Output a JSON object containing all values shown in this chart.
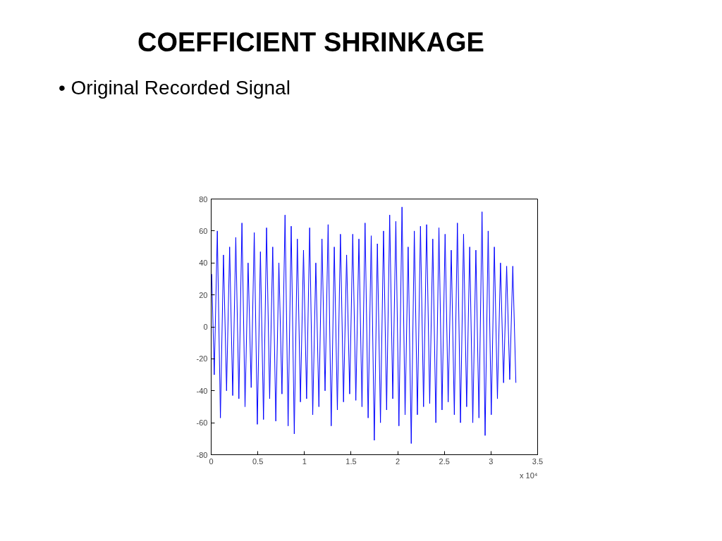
{
  "chart_data": {
    "type": "line",
    "title": "COEFFICIENT SHRINKAGE",
    "subtitle": "• Original Recorded Signal",
    "annotations": [
      "x 10⁴"
    ],
    "x": [
      0.006,
      0.033,
      0.066,
      0.099,
      0.132,
      0.165,
      0.198,
      0.231,
      0.264,
      0.297,
      0.33,
      0.363,
      0.396,
      0.429,
      0.462,
      0.495,
      0.528,
      0.561,
      0.594,
      0.627,
      0.66,
      0.693,
      0.726,
      0.759,
      0.792,
      0.825,
      0.858,
      0.891,
      0.924,
      0.957,
      0.99,
      1.023,
      1.056,
      1.089,
      1.122,
      1.155,
      1.188,
      1.221,
      1.254,
      1.287,
      1.32,
      1.353,
      1.386,
      1.419,
      1.452,
      1.485,
      1.518,
      1.551,
      1.584,
      1.617,
      1.65,
      1.683,
      1.716,
      1.749,
      1.782,
      1.815,
      1.848,
      1.881,
      1.914,
      1.947,
      1.98,
      2.013,
      2.046,
      2.079,
      2.112,
      2.145,
      2.178,
      2.211,
      2.244,
      2.277,
      2.31,
      2.343,
      2.376,
      2.409,
      2.442,
      2.475,
      2.508,
      2.541,
      2.574,
      2.607,
      2.64,
      2.673,
      2.706,
      2.739,
      2.772,
      2.805,
      2.838,
      2.871,
      2.904,
      2.937,
      2.97,
      3.003,
      3.036,
      3.069,
      3.102,
      3.135,
      3.168,
      3.201,
      3.234,
      3.267
    ],
    "series": [
      {
        "color": "#0000ff",
        "values": [
          33,
          -30,
          60,
          -57,
          45,
          -40,
          50,
          -43,
          56,
          -45,
          65,
          -50,
          40,
          -38,
          59,
          -61,
          47,
          -58,
          62,
          -45,
          50,
          -59,
          40,
          -42,
          70,
          -62,
          63,
          -67,
          55,
          -47,
          48,
          -45,
          62,
          -55,
          40,
          -50,
          55,
          -40,
          64,
          -62,
          50,
          -52,
          58,
          -47,
          45,
          -42,
          58,
          -46,
          55,
          -50,
          65,
          -57,
          57,
          -71,
          52,
          -60,
          60,
          -52,
          70,
          -45,
          66,
          -62,
          75,
          -55,
          50,
          -73,
          60,
          -55,
          63,
          -50,
          64,
          -48,
          55,
          -60,
          62,
          -52,
          58,
          -47,
          48,
          -55,
          65,
          -60,
          58,
          -50,
          50,
          -60,
          48,
          -57,
          72,
          -68,
          60,
          -55,
          50,
          -45,
          40,
          -35,
          38,
          -33,
          38,
          -35
        ]
      }
    ],
    "xlim": [
      0,
      3.5
    ],
    "ylim": [
      -80,
      80
    ],
    "xticks": [
      0,
      0.5,
      1,
      1.5,
      2,
      2.5,
      3,
      3.5
    ],
    "yticks": [
      -80,
      -60,
      -40,
      -20,
      0,
      20,
      40,
      60,
      80
    ],
    "grid": false
  }
}
